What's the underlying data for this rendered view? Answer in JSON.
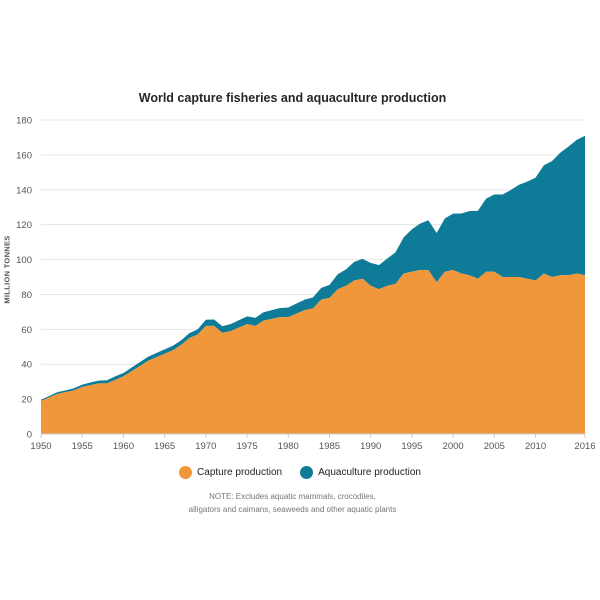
{
  "title": "World capture fisheries and aquaculture production",
  "note_line1": "NOTE: Excludes aquatic mammals, crocodiles,",
  "note_line2": "alligators and caimans, seaweeds and other aquatic plants",
  "colors": {
    "capture": "#f0973b",
    "aquaculture": "#0e7b98",
    "grid": "#e6e6e6",
    "axis": "#cccccc"
  },
  "chart_data": {
    "type": "area",
    "stacked": true,
    "title": "World capture fisheries and aquaculture production",
    "ylabel": "MILLION TONNES",
    "xlabel": "",
    "ylim": [
      0,
      180
    ],
    "xlim": [
      1950,
      2016
    ],
    "yticks": [
      0,
      20,
      40,
      60,
      80,
      100,
      120,
      140,
      160,
      180
    ],
    "xticks": [
      1950,
      1955,
      1960,
      1965,
      1970,
      1975,
      1980,
      1985,
      1990,
      1995,
      2000,
      2005,
      2010
    ],
    "xtick_labels": [
      "1950",
      "1955",
      "1960",
      "1965",
      "1970",
      "1975",
      "1980",
      "1985",
      "1990",
      "1995",
      "2000",
      "2005",
      "2010"
    ],
    "xtick_last": 2016,
    "xtick_last_label": "2016",
    "legend_position": "bottom",
    "grid": true,
    "x": [
      1950,
      1951,
      1952,
      1953,
      1954,
      1955,
      1956,
      1957,
      1958,
      1959,
      1960,
      1961,
      1962,
      1963,
      1964,
      1965,
      1966,
      1967,
      1968,
      1969,
      1970,
      1971,
      1972,
      1973,
      1974,
      1975,
      1976,
      1977,
      1978,
      1979,
      1980,
      1981,
      1982,
      1983,
      1984,
      1985,
      1986,
      1987,
      1988,
      1989,
      1990,
      1991,
      1992,
      1993,
      1994,
      1995,
      1996,
      1997,
      1998,
      1999,
      2000,
      2001,
      2002,
      2003,
      2004,
      2005,
      2006,
      2007,
      2008,
      2009,
      2010,
      2011,
      2012,
      2013,
      2014,
      2015,
      2016
    ],
    "series": [
      {
        "name": "Capture production",
        "values": [
          19,
          21,
          23,
          24,
          25,
          27,
          28,
          29,
          29,
          31,
          33,
          36,
          39,
          42,
          44,
          46,
          48,
          51,
          55,
          57,
          62,
          62,
          58,
          59,
          61,
          63,
          62,
          65,
          66,
          67,
          67,
          69,
          71,
          72,
          77,
          78,
          83,
          85,
          88,
          89,
          85,
          83,
          85,
          86,
          92,
          93,
          94,
          94,
          87,
          93,
          94,
          92,
          91,
          89,
          93,
          93,
          90,
          90,
          90,
          89,
          88,
          92,
          90,
          91,
          91,
          92,
          91
        ]
      },
      {
        "name": "Aquaculture production",
        "values": [
          0.6,
          0.8,
          1,
          1,
          1.2,
          1.3,
          1.5,
          1.6,
          1.8,
          2,
          2,
          2.1,
          2.2,
          2.3,
          2.4,
          2.5,
          2.6,
          2.7,
          2.8,
          3,
          3.5,
          3.6,
          3.8,
          4,
          4.2,
          4.4,
          4.6,
          4.8,
          5,
          5.2,
          5.5,
          5.8,
          6,
          6.3,
          6.8,
          7.5,
          8.6,
          9.4,
          10.7,
          11.4,
          13.1,
          13.8,
          15.5,
          18.1,
          20.7,
          24.4,
          26.6,
          28.5,
          28.2,
          30.6,
          32.3,
          34.4,
          36.8,
          38.9,
          41.9,
          44.3,
          47.3,
          49.9,
          52.9,
          55.7,
          59.0,
          62.0,
          66.5,
          70.2,
          73.8,
          76.6,
          80.0
        ]
      }
    ]
  },
  "legend": [
    {
      "label": "Capture production",
      "color": "#f0973b"
    },
    {
      "label": "Aquaculture production",
      "color": "#0e7b98"
    }
  ]
}
